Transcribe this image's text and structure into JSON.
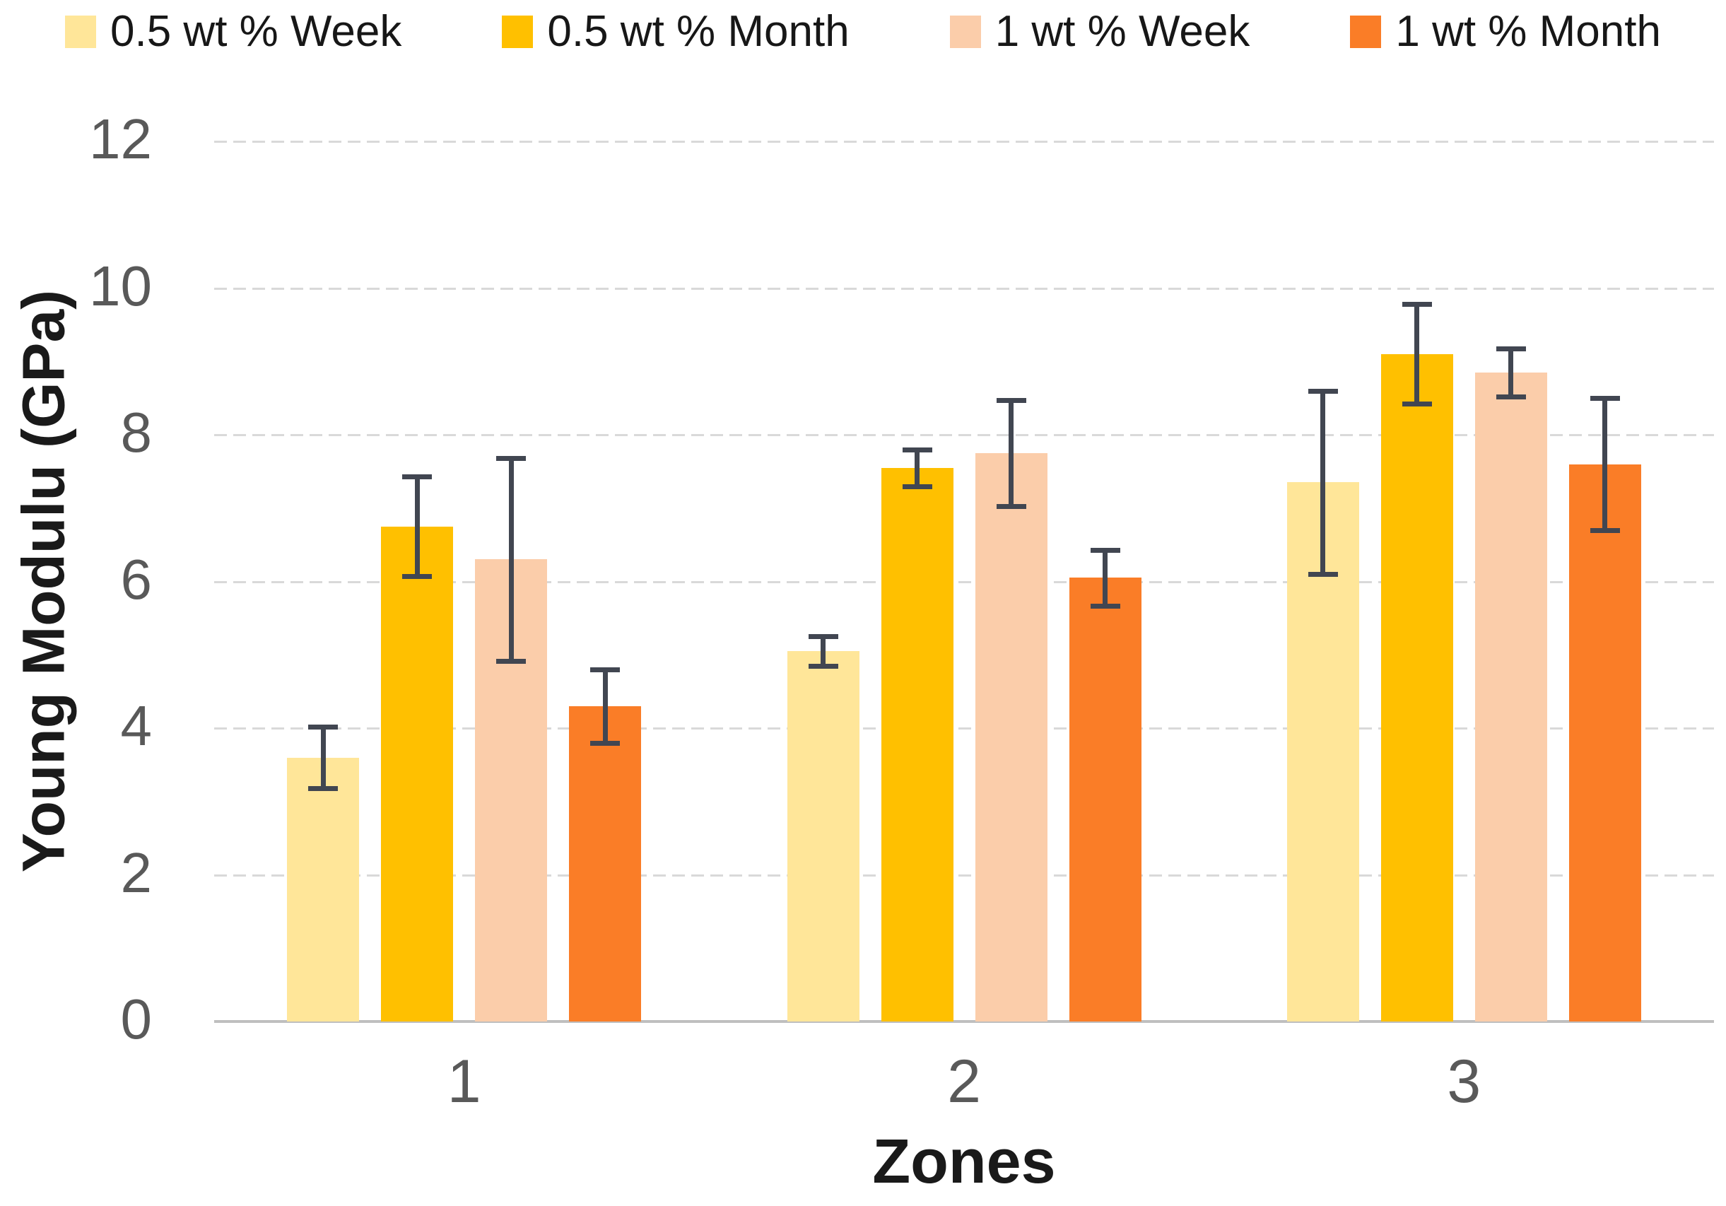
{
  "chart_data": {
    "type": "bar",
    "title": "",
    "xlabel": "Zones",
    "ylabel": "Young Modulu (GPa)",
    "categories": [
      "1",
      "2",
      "3"
    ],
    "series": [
      {
        "name": "0.5 wt % Week",
        "color": "#FFE699",
        "values": [
          3.6,
          5.05,
          7.35
        ],
        "errors": [
          0.42,
          0.2,
          1.25
        ]
      },
      {
        "name": "0.5 wt % Month",
        "color": "#FFC000",
        "values": [
          6.75,
          7.55,
          9.1
        ],
        "errors": [
          0.68,
          0.25,
          0.68
        ]
      },
      {
        "name": "1 wt % Week",
        "color": "#FBCDAA",
        "values": [
          6.3,
          7.75,
          8.85
        ],
        "errors": [
          1.38,
          0.72,
          0.33
        ]
      },
      {
        "name": "1 wt % Month",
        "color": "#FA7D27",
        "values": [
          4.3,
          6.05,
          7.6
        ],
        "errors": [
          0.5,
          0.38,
          0.9
        ]
      }
    ],
    "y_ticks": [
      0,
      2,
      4,
      6,
      8,
      10,
      12
    ],
    "ylim": [
      0,
      12
    ],
    "grid": true,
    "legend_position": "top",
    "colors": {
      "error_bar": "#414651",
      "gridline": "#D9D9D9",
      "axis_line": "#BFBFBF",
      "tick_label": "#595959",
      "axis_title": "#1A1A1A",
      "background": "#FFFFFF"
    }
  }
}
